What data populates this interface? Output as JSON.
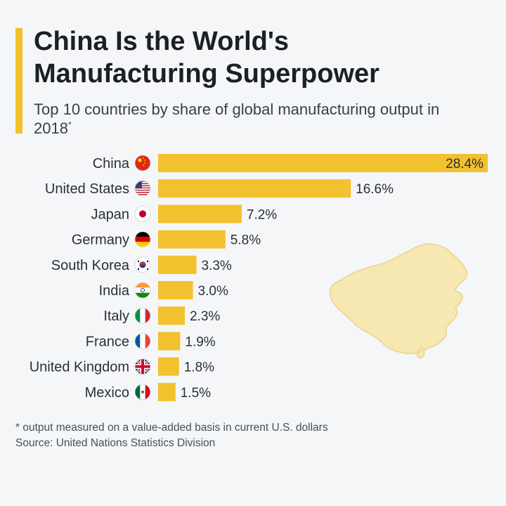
{
  "header": {
    "title_line1": "China Is the World's",
    "title_line2": "Manufacturing Superpower",
    "subtitle_text": "Top 10 countries by share of global manufacturing output in 2018",
    "subtitle_mark": "*"
  },
  "chart_data": {
    "type": "bar",
    "orientation": "horizontal",
    "title": "China Is the World's Manufacturing Superpower",
    "subtitle": "Top 10 countries by share of global manufacturing output in 2018*",
    "xlabel": "",
    "ylabel": "",
    "unit": "%",
    "xlim": [
      0,
      28.4
    ],
    "categories": [
      "China",
      "United States",
      "Japan",
      "Germany",
      "South Korea",
      "India",
      "Italy",
      "France",
      "United Kingdom",
      "Mexico"
    ],
    "values": [
      28.4,
      16.6,
      7.2,
      5.8,
      3.3,
      3.0,
      2.3,
      1.9,
      1.8,
      1.5
    ],
    "value_labels": [
      "28.4%",
      "16.6%",
      "7.2%",
      "5.8%",
      "3.3%",
      "3.0%",
      "2.3%",
      "1.9%",
      "1.8%",
      "1.5%"
    ],
    "flags": [
      "china-flag-icon",
      "usa-flag-icon",
      "japan-flag-icon",
      "germany-flag-icon",
      "south-korea-flag-icon",
      "india-flag-icon",
      "italy-flag-icon",
      "france-flag-icon",
      "uk-flag-icon",
      "mexico-flag-icon"
    ],
    "bar_color": "#f2c12e"
  },
  "footer": {
    "note": "* output measured on a value-added basis in current U.S. dollars",
    "source": "Source: United Nations Statistics Division"
  },
  "colors": {
    "accent": "#f2c12e",
    "map_fill": "#f7e7b0",
    "background": "#f4f6f8"
  }
}
